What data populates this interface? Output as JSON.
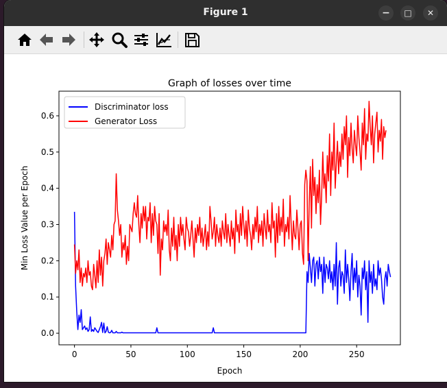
{
  "window": {
    "title": "Figure 1",
    "controls": {
      "minimize": "−",
      "maximize": "□",
      "close": "✕"
    }
  },
  "toolbar": {
    "buttons": [
      {
        "name": "home",
        "icon": "home-icon"
      },
      {
        "name": "back",
        "icon": "arrow-left-icon"
      },
      {
        "name": "forward",
        "icon": "arrow-right-icon"
      },
      {
        "name": "pan",
        "icon": "move-icon"
      },
      {
        "name": "zoom",
        "icon": "magnifier-icon"
      },
      {
        "name": "configure-subplots",
        "icon": "sliders-icon"
      },
      {
        "name": "edit-axis",
        "icon": "line-chart-icon"
      },
      {
        "name": "save",
        "icon": "floppy-disk-icon"
      }
    ]
  },
  "chart_data": {
    "type": "line",
    "title": "Graph of losses over time",
    "xlabel": "Epoch",
    "ylabel": "Min Loss Value per Epoch",
    "xlim": [
      -13.75,
      288.75
    ],
    "ylim": [
      -0.032,
      0.668
    ],
    "xticks": [
      0,
      50,
      100,
      150,
      200,
      250
    ],
    "yticks": [
      0.0,
      0.1,
      0.2,
      0.3,
      0.4,
      0.5,
      0.6
    ],
    "xtick_labels": [
      "0",
      "50",
      "100",
      "150",
      "200",
      "250"
    ],
    "ytick_labels": [
      "0.0",
      "0.1",
      "0.2",
      "0.3",
      "0.4",
      "0.5",
      "0.6"
    ],
    "grid": false,
    "legend_position": "top-left",
    "series": [
      {
        "name": "Discriminator loss",
        "color": "#0000ff",
        "values": [
          0.335,
          0.13,
          0.06,
          0.01,
          0.05,
          0.03,
          0.065,
          0.01,
          0.015,
          0.02,
          0.01,
          0.015,
          0.005,
          0.01,
          0.045,
          0.005,
          0.01,
          0.005,
          0.015,
          0.01,
          0.005,
          0.002,
          0.01,
          0.018,
          0.03,
          0.002,
          0.028,
          0.001,
          0.005,
          0.018,
          0.003,
          0.001,
          0.002,
          0.008,
          0.001,
          0.001,
          0.001,
          0.005,
          0.001,
          0.001,
          0.001,
          0.001,
          0.003,
          0.001,
          0.001,
          0.001,
          0.001,
          0.001,
          0.001,
          0.001,
          0.001,
          0.001,
          0.001,
          0.001,
          0.001,
          0.001,
          0.001,
          0.001,
          0.001,
          0.001,
          0.001,
          0.001,
          0.001,
          0.001,
          0.001,
          0.001,
          0.001,
          0.001,
          0.001,
          0.001,
          0.001,
          0.001,
          0.001,
          0.015,
          0.001,
          0.001,
          0.001,
          0.001,
          0.001,
          0.001,
          0.001,
          0.001,
          0.001,
          0.001,
          0.001,
          0.001,
          0.001,
          0.001,
          0.001,
          0.001,
          0.001,
          0.001,
          0.001,
          0.001,
          0.001,
          0.001,
          0.001,
          0.001,
          0.001,
          0.001,
          0.001,
          0.001,
          0.001,
          0.001,
          0.001,
          0.001,
          0.001,
          0.001,
          0.001,
          0.001,
          0.001,
          0.001,
          0.001,
          0.001,
          0.001,
          0.001,
          0.001,
          0.001,
          0.001,
          0.001,
          0.001,
          0.001,
          0.001,
          0.015,
          0.001,
          0.001,
          0.001,
          0.001,
          0.001,
          0.001,
          0.001,
          0.001,
          0.001,
          0.001,
          0.001,
          0.001,
          0.001,
          0.001,
          0.001,
          0.001,
          0.001,
          0.001,
          0.001,
          0.001,
          0.001,
          0.001,
          0.001,
          0.001,
          0.001,
          0.001,
          0.001,
          0.001,
          0.001,
          0.001,
          0.001,
          0.001,
          0.001,
          0.001,
          0.001,
          0.001,
          0.001,
          0.001,
          0.001,
          0.001,
          0.001,
          0.001,
          0.001,
          0.001,
          0.001,
          0.001,
          0.001,
          0.001,
          0.001,
          0.001,
          0.001,
          0.001,
          0.001,
          0.001,
          0.001,
          0.001,
          0.001,
          0.001,
          0.001,
          0.001,
          0.001,
          0.001,
          0.001,
          0.001,
          0.001,
          0.001,
          0.001,
          0.001,
          0.001,
          0.001,
          0.001,
          0.001,
          0.001,
          0.001,
          0.001,
          0.001,
          0.001,
          0.001,
          0.001,
          0.001,
          0.001,
          0.001,
          0.17,
          0.14,
          0.22,
          0.18,
          0.14,
          0.2,
          0.21,
          0.13,
          0.19,
          0.2,
          0.15,
          0.21,
          0.17,
          0.19,
          0.11,
          0.21,
          0.14,
          0.19,
          0.18,
          0.15,
          0.2,
          0.14,
          0.17,
          0.12,
          0.19,
          0.13,
          0.25,
          0.08,
          0.18,
          0.2,
          0.13,
          0.17,
          0.16,
          0.11,
          0.23,
          0.14,
          0.19,
          0.15,
          0.09,
          0.17,
          0.22,
          0.12,
          0.18,
          0.14,
          0.2,
          0.1,
          0.16,
          0.13,
          0.05,
          0.18,
          0.15,
          0.2,
          0.12,
          0.17,
          0.03,
          0.2,
          0.14,
          0.17,
          0.11,
          0.19,
          0.13,
          0.15,
          0.12,
          0.2,
          0.16,
          0.18,
          0.15,
          0.1,
          0.08,
          0.15,
          0.17,
          0.13,
          0.19,
          0.17,
          0.155
        ]
      },
      {
        "name": "Generator Loss",
        "color": "#ff0000",
        "values": [
          0.245,
          0.165,
          0.2,
          0.175,
          0.23,
          0.14,
          0.18,
          0.13,
          0.165,
          0.155,
          0.18,
          0.14,
          0.2,
          0.16,
          0.17,
          0.13,
          0.12,
          0.19,
          0.16,
          0.125,
          0.2,
          0.14,
          0.23,
          0.16,
          0.21,
          0.13,
          0.2,
          0.22,
          0.26,
          0.19,
          0.25,
          0.23,
          0.21,
          0.27,
          0.23,
          0.3,
          0.31,
          0.44,
          0.34,
          0.31,
          0.27,
          0.3,
          0.21,
          0.25,
          0.23,
          0.27,
          0.19,
          0.24,
          0.2,
          0.3,
          0.29,
          0.28,
          0.33,
          0.36,
          0.33,
          0.32,
          0.38,
          0.3,
          0.25,
          0.33,
          0.29,
          0.35,
          0.31,
          0.35,
          0.26,
          0.32,
          0.31,
          0.36,
          0.25,
          0.33,
          0.27,
          0.35,
          0.31,
          0.3,
          0.22,
          0.33,
          0.16,
          0.26,
          0.23,
          0.31,
          0.28,
          0.3,
          0.27,
          0.34,
          0.23,
          0.2,
          0.29,
          0.24,
          0.32,
          0.23,
          0.27,
          0.2,
          0.3,
          0.24,
          0.32,
          0.27,
          0.3,
          0.26,
          0.23,
          0.32,
          0.29,
          0.28,
          0.24,
          0.27,
          0.31,
          0.26,
          0.21,
          0.29,
          0.25,
          0.3,
          0.27,
          0.32,
          0.25,
          0.29,
          0.24,
          0.27,
          0.3,
          0.23,
          0.28,
          0.24,
          0.35,
          0.31,
          0.26,
          0.28,
          0.32,
          0.24,
          0.3,
          0.27,
          0.25,
          0.29,
          0.24,
          0.31,
          0.28,
          0.26,
          0.33,
          0.25,
          0.3,
          0.27,
          0.24,
          0.31,
          0.26,
          0.29,
          0.22,
          0.34,
          0.28,
          0.3,
          0.25,
          0.33,
          0.27,
          0.35,
          0.3,
          0.26,
          0.31,
          0.24,
          0.34,
          0.29,
          0.27,
          0.23,
          0.3,
          0.26,
          0.32,
          0.28,
          0.35,
          0.25,
          0.3,
          0.27,
          0.31,
          0.24,
          0.33,
          0.29,
          0.26,
          0.34,
          0.28,
          0.3,
          0.25,
          0.36,
          0.29,
          0.31,
          0.21,
          0.33,
          0.25,
          0.35,
          0.27,
          0.32,
          0.28,
          0.37,
          0.24,
          0.3,
          0.28,
          0.32,
          0.26,
          0.38,
          0.3,
          0.23,
          0.31,
          0.27,
          0.26,
          0.34,
          0.29,
          0.23,
          0.3,
          0.31,
          0.22,
          0.19,
          0.41,
          0.45,
          0.42,
          0.2,
          0.36,
          0.46,
          0.29,
          0.48,
          0.38,
          0.43,
          0.33,
          0.41,
          0.36,
          0.45,
          0.3,
          0.38,
          0.5,
          0.4,
          0.44,
          0.36,
          0.49,
          0.42,
          0.55,
          0.38,
          0.5,
          0.45,
          0.58,
          0.4,
          0.47,
          0.53,
          0.44,
          0.5,
          0.46,
          0.55,
          0.48,
          0.57,
          0.52,
          0.6,
          0.43,
          0.54,
          0.49,
          0.58,
          0.51,
          0.47,
          0.56,
          0.52,
          0.49,
          0.6,
          0.54,
          0.5,
          0.45,
          0.58,
          0.52,
          0.62,
          0.48,
          0.55,
          0.53,
          0.64,
          0.57,
          0.52,
          0.6,
          0.47,
          0.55,
          0.58,
          0.61,
          0.5,
          0.56,
          0.53,
          0.59,
          0.48,
          0.57,
          0.54,
          0.56
        ]
      }
    ]
  }
}
